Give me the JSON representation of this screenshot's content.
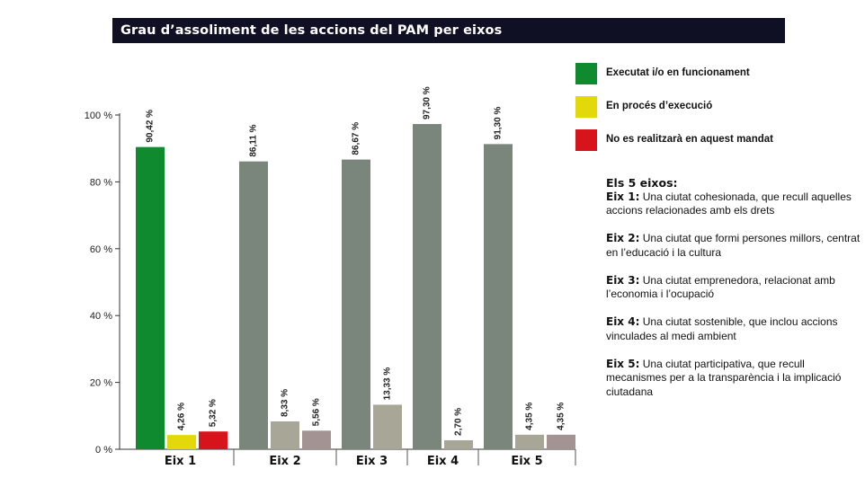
{
  "title": "Grau d’assoliment de les accions del PAM per eixos",
  "legend": [
    {
      "label": "Executat i/o en funcionament",
      "color": "#0f8a2e"
    },
    {
      "label": "En procés d’execució",
      "color": "#e3d80a"
    },
    {
      "label": "No es realitzarà en aquest mandat",
      "color": "#d7141c"
    }
  ],
  "eixos": {
    "heading": "Els 5 eixos:",
    "items": [
      {
        "name": "Eix 1:",
        "desc": "Una ciutat cohesionada, que recull aquelles accions relacionades amb els drets"
      },
      {
        "name": "Eix 2:",
        "desc": "Una ciutat que formi persones millors, centrat en l’educació i la cultura"
      },
      {
        "name": "Eix 3:",
        "desc": "Una ciutat emprenedora, relacionat amb l’economia i l’ocupació"
      },
      {
        "name": "Eix 4:",
        "desc": "Una ciutat sostenible, que inclou accions vinculades al medi ambient"
      },
      {
        "name": "Eix 5:",
        "desc": "Una ciutat participativa, que recull mecanismes per a la transparència i la implicació ciutadana"
      }
    ]
  },
  "chart_data": {
    "type": "bar",
    "title": "Grau d’assoliment de les accions del PAM per eixos",
    "categories": [
      "Eix 1",
      "Eix 2",
      "Eix 3",
      "Eix 4",
      "Eix 5"
    ],
    "ylim": [
      0,
      100
    ],
    "yticks": [
      "0 %",
      "20 %",
      "40 %",
      "60 %",
      "80 %",
      "100 %"
    ],
    "ytick_values": [
      0,
      20,
      40,
      60,
      80,
      100
    ],
    "grid": false,
    "legend_position": "right",
    "series": [
      {
        "name": "Executat i/o en funcionament",
        "values": [
          90.42,
          86.11,
          86.67,
          97.3,
          91.3
        ],
        "labels": [
          "90,42 %",
          "86,11 %",
          "86,67 %",
          "97,30 %",
          "91,30 %"
        ],
        "colors": [
          "#0f8a2e",
          "#7a857c",
          "#7a857c",
          "#7a857c",
          "#7a857c"
        ]
      },
      {
        "name": "En procés d’execució",
        "values": [
          4.26,
          8.33,
          13.33,
          2.7,
          4.35
        ],
        "labels": [
          "4,26 %",
          "8,33 %",
          "13,33 %",
          "2,70 %",
          "4,35 %"
        ],
        "colors": [
          "#e3d80a",
          "#a8a697",
          "#a8a697",
          "#a8a697",
          "#a8a697"
        ]
      },
      {
        "name": "No es realitzarà en aquest mandat",
        "values": [
          5.32,
          5.56,
          null,
          null,
          4.35
        ],
        "labels": [
          "5,32 %",
          "5,56 %",
          null,
          null,
          "4,35 %"
        ],
        "colors": [
          "#d7141c",
          "#a39392",
          null,
          null,
          "#a39392"
        ]
      }
    ]
  }
}
